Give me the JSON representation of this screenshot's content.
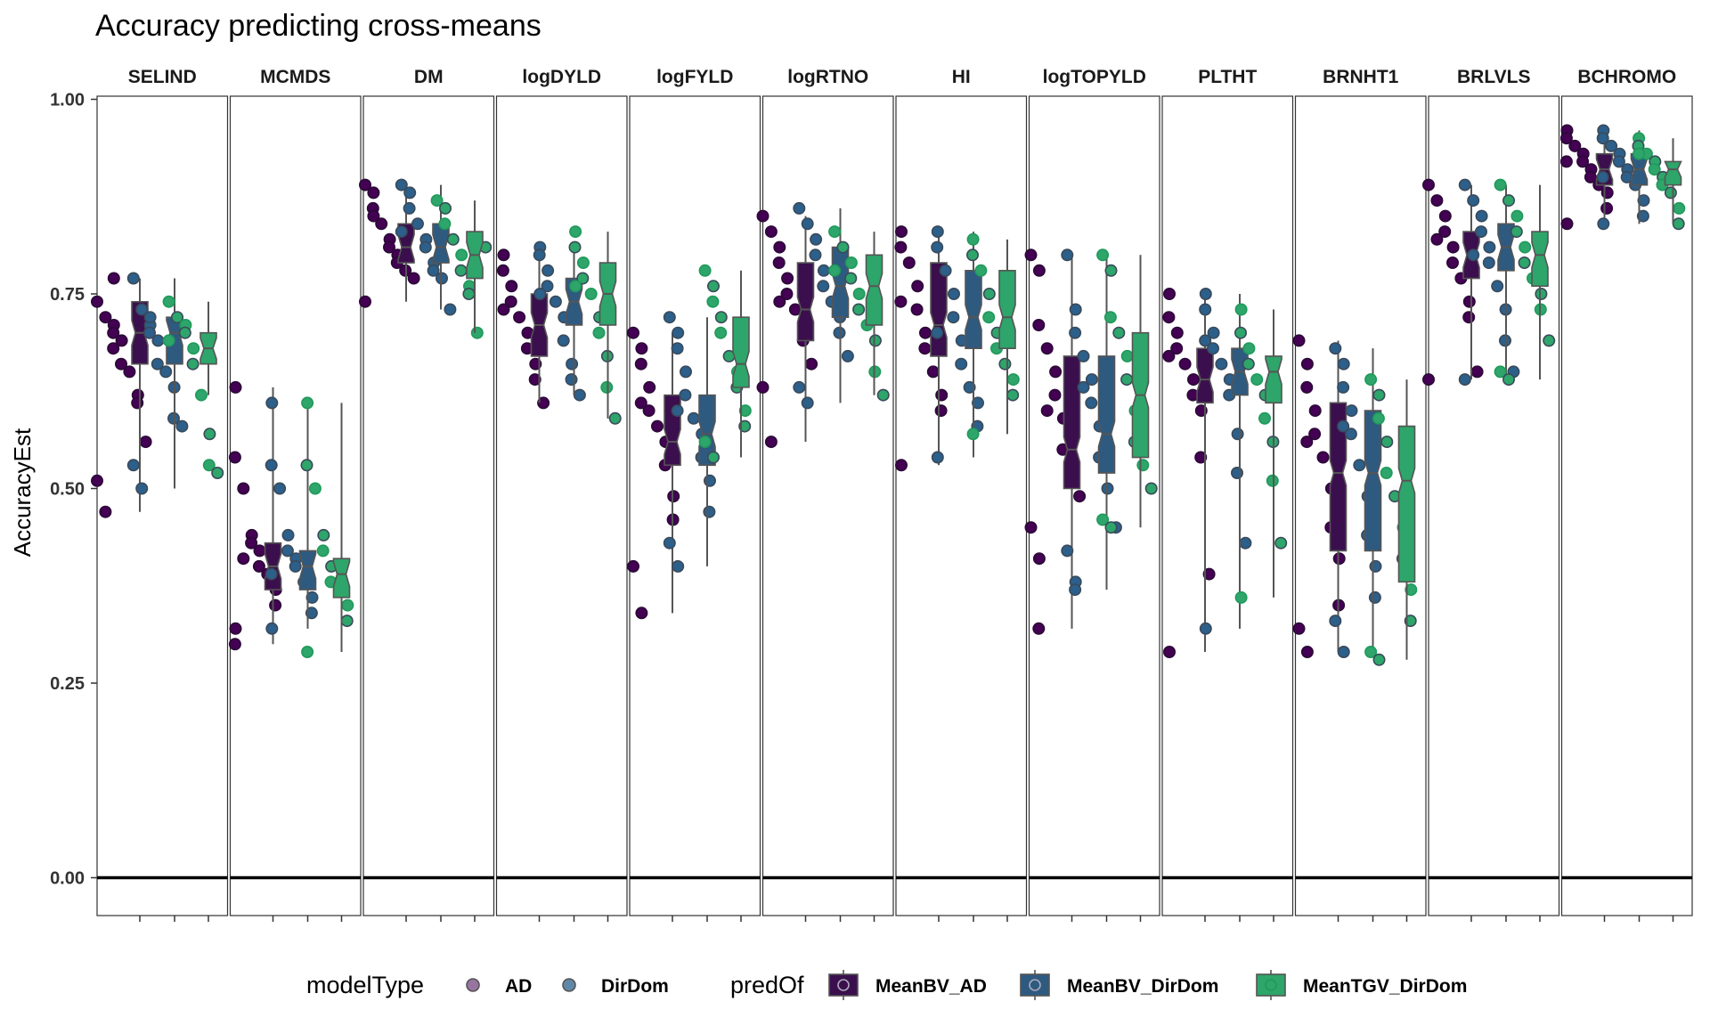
{
  "chart_data": {
    "type": "box",
    "title": "Accuracy predicting cross-means",
    "xlabel": "",
    "ylabel": "AccuracyEst",
    "ylim": [
      -0.05,
      1.0
    ],
    "yticks": [
      "0.00",
      "0.25",
      "0.50",
      "0.75",
      "1.00"
    ],
    "reference_line_y": 0,
    "legend_position": "bottom",
    "colors": {
      "AD": "#440154",
      "DirDom": "#2c5f8a",
      "MeanBV_AD": "#3b0f4d",
      "MeanBV_DirDom": "#2f5a80",
      "MeanTGV_DirDom": "#2ea56a",
      "dot_outline": "#555555",
      "neutral_dot": "#595959"
    },
    "legend": {
      "modelType_title": "modelType",
      "modelType": [
        "AD",
        "DirDom"
      ],
      "predOf_title": "predOf",
      "predOf": [
        "MeanBV_AD",
        "MeanBV_DirDom",
        "MeanTGV_DirDom"
      ]
    },
    "panels": [
      {
        "label": "SELIND",
        "boxes": [
          {
            "series": "MeanBV_AD",
            "min": 0.47,
            "q1": 0.66,
            "median": 0.7,
            "q3": 0.74,
            "max": 0.77,
            "points": [
              0.74,
              0.72,
              0.71,
              0.7,
              0.69,
              0.66,
              0.65,
              0.62,
              0.61,
              0.56,
              0.51,
              0.47,
              0.77,
              0.68
            ]
          },
          {
            "series": "MeanBV_DirDom",
            "min": 0.5,
            "q1": 0.66,
            "median": 0.7,
            "q3": 0.72,
            "max": 0.77,
            "points": [
              0.77,
              0.73,
              0.71,
              0.7,
              0.69,
              0.66,
              0.65,
              0.63,
              0.59,
              0.58,
              0.53,
              0.5,
              0.72
            ]
          },
          {
            "series": "MeanTGV_DirDom",
            "min": 0.62,
            "q1": 0.66,
            "median": 0.68,
            "q3": 0.7,
            "max": 0.74,
            "points": [
              0.74,
              0.72,
              0.71,
              0.7,
              0.68,
              0.66,
              0.62,
              0.57,
              0.53,
              0.52,
              0.69
            ]
          }
        ]
      },
      {
        "label": "MCMDS",
        "boxes": [
          {
            "series": "MeanBV_AD",
            "min": 0.3,
            "q1": 0.37,
            "median": 0.4,
            "q3": 0.43,
            "max": 0.63,
            "points": [
              0.63,
              0.54,
              0.5,
              0.44,
              0.43,
              0.42,
              0.4,
              0.39,
              0.37,
              0.35,
              0.32,
              0.3,
              0.41
            ]
          },
          {
            "series": "MeanBV_DirDom",
            "min": 0.32,
            "q1": 0.37,
            "median": 0.4,
            "q3": 0.42,
            "max": 0.61,
            "points": [
              0.61,
              0.53,
              0.5,
              0.44,
              0.42,
              0.41,
              0.4,
              0.38,
              0.36,
              0.34,
              0.32,
              0.39
            ]
          },
          {
            "series": "MeanTGV_DirDom",
            "min": 0.29,
            "q1": 0.36,
            "median": 0.39,
            "q3": 0.41,
            "max": 0.61,
            "points": [
              0.61,
              0.53,
              0.5,
              0.44,
              0.42,
              0.4,
              0.38,
              0.37,
              0.35,
              0.33,
              0.29
            ]
          }
        ]
      },
      {
        "label": "DM",
        "boxes": [
          {
            "series": "MeanBV_AD",
            "min": 0.74,
            "q1": 0.79,
            "median": 0.81,
            "q3": 0.84,
            "max": 0.89,
            "points": [
              0.89,
              0.88,
              0.86,
              0.84,
              0.82,
              0.81,
              0.8,
              0.79,
              0.78,
              0.77,
              0.74,
              0.85
            ]
          },
          {
            "series": "MeanBV_DirDom",
            "min": 0.73,
            "q1": 0.79,
            "median": 0.81,
            "q3": 0.84,
            "max": 0.89,
            "points": [
              0.89,
              0.88,
              0.86,
              0.84,
              0.82,
              0.81,
              0.79,
              0.78,
              0.77,
              0.73,
              0.83
            ]
          },
          {
            "series": "MeanTGV_DirDom",
            "min": 0.7,
            "q1": 0.77,
            "median": 0.8,
            "q3": 0.83,
            "max": 0.87,
            "points": [
              0.87,
              0.86,
              0.84,
              0.82,
              0.8,
              0.78,
              0.76,
              0.75,
              0.7,
              0.81
            ]
          }
        ]
      },
      {
        "label": "logDYLD",
        "boxes": [
          {
            "series": "MeanBV_AD",
            "min": 0.61,
            "q1": 0.67,
            "median": 0.71,
            "q3": 0.75,
            "max": 0.8,
            "points": [
              0.8,
              0.78,
              0.76,
              0.74,
              0.72,
              0.7,
              0.68,
              0.66,
              0.64,
              0.61,
              0.73
            ]
          },
          {
            "series": "MeanBV_DirDom",
            "min": 0.62,
            "q1": 0.71,
            "median": 0.74,
            "q3": 0.77,
            "max": 0.81,
            "points": [
              0.81,
              0.8,
              0.78,
              0.76,
              0.74,
              0.72,
              0.69,
              0.66,
              0.64,
              0.62,
              0.75
            ]
          },
          {
            "series": "MeanTGV_DirDom",
            "min": 0.59,
            "q1": 0.71,
            "median": 0.75,
            "q3": 0.79,
            "max": 0.83,
            "points": [
              0.83,
              0.81,
              0.79,
              0.77,
              0.75,
              0.72,
              0.7,
              0.67,
              0.63,
              0.59,
              0.76
            ]
          }
        ]
      },
      {
        "label": "logFYLD",
        "boxes": [
          {
            "series": "MeanBV_AD",
            "min": 0.34,
            "q1": 0.53,
            "median": 0.56,
            "q3": 0.62,
            "max": 0.7,
            "points": [
              0.7,
              0.68,
              0.66,
              0.63,
              0.6,
              0.58,
              0.56,
              0.53,
              0.49,
              0.46,
              0.4,
              0.34,
              0.61
            ]
          },
          {
            "series": "MeanBV_DirDom",
            "min": 0.4,
            "q1": 0.53,
            "median": 0.57,
            "q3": 0.62,
            "max": 0.72,
            "points": [
              0.72,
              0.7,
              0.68,
              0.65,
              0.62,
              0.59,
              0.57,
              0.54,
              0.51,
              0.47,
              0.43,
              0.4,
              0.6
            ]
          },
          {
            "series": "MeanTGV_DirDom",
            "min": 0.54,
            "q1": 0.63,
            "median": 0.66,
            "q3": 0.72,
            "max": 0.78,
            "points": [
              0.78,
              0.76,
              0.74,
              0.72,
              0.7,
              0.67,
              0.65,
              0.63,
              0.6,
              0.58,
              0.56,
              0.54
            ]
          }
        ]
      },
      {
        "label": "logRTNO",
        "boxes": [
          {
            "series": "MeanBV_AD",
            "min": 0.56,
            "q1": 0.69,
            "median": 0.73,
            "q3": 0.79,
            "max": 0.85,
            "points": [
              0.85,
              0.83,
              0.81,
              0.79,
              0.77,
              0.75,
              0.73,
              0.71,
              0.69,
              0.66,
              0.63,
              0.56,
              0.74
            ]
          },
          {
            "series": "MeanBV_DirDom",
            "min": 0.61,
            "q1": 0.72,
            "median": 0.76,
            "q3": 0.81,
            "max": 0.86,
            "points": [
              0.86,
              0.84,
              0.82,
              0.8,
              0.78,
              0.76,
              0.74,
              0.72,
              0.7,
              0.67,
              0.63,
              0.61
            ]
          },
          {
            "series": "MeanTGV_DirDom",
            "min": 0.62,
            "q1": 0.71,
            "median": 0.76,
            "q3": 0.8,
            "max": 0.83,
            "points": [
              0.83,
              0.81,
              0.79,
              0.77,
              0.75,
              0.73,
              0.71,
              0.69,
              0.65,
              0.62,
              0.78
            ]
          }
        ]
      },
      {
        "label": "HI",
        "boxes": [
          {
            "series": "MeanBV_AD",
            "min": 0.53,
            "q1": 0.67,
            "median": 0.71,
            "q3": 0.79,
            "max": 0.83,
            "points": [
              0.83,
              0.81,
              0.79,
              0.76,
              0.73,
              0.7,
              0.68,
              0.65,
              0.62,
              0.6,
              0.53,
              0.74
            ]
          },
          {
            "series": "MeanBV_DirDom",
            "min": 0.54,
            "q1": 0.68,
            "median": 0.72,
            "q3": 0.78,
            "max": 0.83,
            "points": [
              0.83,
              0.81,
              0.78,
              0.75,
              0.72,
              0.69,
              0.66,
              0.63,
              0.61,
              0.58,
              0.54,
              0.7
            ]
          },
          {
            "series": "MeanTGV_DirDom",
            "min": 0.57,
            "q1": 0.68,
            "median": 0.72,
            "q3": 0.78,
            "max": 0.82,
            "points": [
              0.82,
              0.8,
              0.78,
              0.75,
              0.72,
              0.7,
              0.68,
              0.66,
              0.64,
              0.62,
              0.57
            ]
          }
        ]
      },
      {
        "label": "logTOPYLD",
        "boxes": [
          {
            "series": "MeanBV_AD",
            "min": 0.32,
            "q1": 0.5,
            "median": 0.55,
            "q3": 0.67,
            "max": 0.8,
            "points": [
              0.8,
              0.78,
              0.71,
              0.68,
              0.65,
              0.62,
              0.59,
              0.55,
              0.52,
              0.49,
              0.45,
              0.41,
              0.32,
              0.6
            ]
          },
          {
            "series": "MeanBV_DirDom",
            "min": 0.37,
            "q1": 0.52,
            "median": 0.57,
            "q3": 0.67,
            "max": 0.8,
            "points": [
              0.8,
              0.73,
              0.7,
              0.67,
              0.64,
              0.61,
              0.58,
              0.54,
              0.5,
              0.45,
              0.42,
              0.38,
              0.37,
              0.63
            ]
          },
          {
            "series": "MeanTGV_DirDom",
            "min": 0.45,
            "q1": 0.54,
            "median": 0.62,
            "q3": 0.7,
            "max": 0.8,
            "points": [
              0.8,
              0.78,
              0.72,
              0.7,
              0.67,
              0.64,
              0.6,
              0.56,
              0.53,
              0.5,
              0.46,
              0.45
            ]
          }
        ]
      },
      {
        "label": "PLTHT",
        "boxes": [
          {
            "series": "MeanBV_AD",
            "min": 0.29,
            "q1": 0.61,
            "median": 0.64,
            "q3": 0.68,
            "max": 0.75,
            "points": [
              0.75,
              0.72,
              0.7,
              0.68,
              0.66,
              0.64,
              0.62,
              0.6,
              0.54,
              0.39,
              0.29,
              0.67
            ]
          },
          {
            "series": "MeanBV_DirDom",
            "min": 0.32,
            "q1": 0.62,
            "median": 0.65,
            "q3": 0.68,
            "max": 0.75,
            "points": [
              0.75,
              0.73,
              0.7,
              0.68,
              0.66,
              0.64,
              0.62,
              0.57,
              0.52,
              0.43,
              0.32,
              0.69
            ]
          },
          {
            "series": "MeanTGV_DirDom",
            "min": 0.36,
            "q1": 0.61,
            "median": 0.65,
            "q3": 0.67,
            "max": 0.73,
            "points": [
              0.73,
              0.7,
              0.68,
              0.66,
              0.64,
              0.62,
              0.59,
              0.56,
              0.51,
              0.43,
              0.36
            ]
          }
        ]
      },
      {
        "label": "BRNHT1",
        "boxes": [
          {
            "series": "MeanBV_AD",
            "min": 0.29,
            "q1": 0.42,
            "median": 0.52,
            "q3": 0.61,
            "max": 0.69,
            "points": [
              0.69,
              0.66,
              0.63,
              0.6,
              0.57,
              0.54,
              0.5,
              0.45,
              0.41,
              0.35,
              0.32,
              0.29,
              0.56
            ]
          },
          {
            "series": "MeanBV_DirDom",
            "min": 0.29,
            "q1": 0.42,
            "median": 0.52,
            "q3": 0.6,
            "max": 0.68,
            "points": [
              0.68,
              0.66,
              0.63,
              0.6,
              0.57,
              0.53,
              0.49,
              0.44,
              0.4,
              0.36,
              0.33,
              0.29,
              0.58
            ]
          },
          {
            "series": "MeanTGV_DirDom",
            "min": 0.28,
            "q1": 0.38,
            "median": 0.51,
            "q3": 0.58,
            "max": 0.64,
            "points": [
              0.64,
              0.62,
              0.59,
              0.56,
              0.52,
              0.49,
              0.45,
              0.41,
              0.37,
              0.33,
              0.29,
              0.28
            ]
          }
        ]
      },
      {
        "label": "BRLVLS",
        "boxes": [
          {
            "series": "MeanBV_AD",
            "min": 0.64,
            "q1": 0.77,
            "median": 0.8,
            "q3": 0.83,
            "max": 0.89,
            "points": [
              0.89,
              0.87,
              0.85,
              0.83,
              0.81,
              0.79,
              0.77,
              0.74,
              0.72,
              0.65,
              0.64,
              0.82
            ]
          },
          {
            "series": "MeanBV_DirDom",
            "min": 0.64,
            "q1": 0.78,
            "median": 0.81,
            "q3": 0.84,
            "max": 0.89,
            "points": [
              0.89,
              0.87,
              0.85,
              0.83,
              0.81,
              0.79,
              0.76,
              0.73,
              0.69,
              0.65,
              0.64,
              0.8
            ]
          },
          {
            "series": "MeanTGV_DirDom",
            "min": 0.64,
            "q1": 0.76,
            "median": 0.8,
            "q3": 0.83,
            "max": 0.89,
            "points": [
              0.89,
              0.87,
              0.85,
              0.83,
              0.81,
              0.79,
              0.77,
              0.75,
              0.73,
              0.69,
              0.65,
              0.64
            ]
          }
        ]
      },
      {
        "label": "BCHROMO",
        "boxes": [
          {
            "series": "MeanBV_AD",
            "min": 0.84,
            "q1": 0.89,
            "median": 0.91,
            "q3": 0.93,
            "max": 0.96,
            "points": [
              0.96,
              0.95,
              0.94,
              0.93,
              0.92,
              0.91,
              0.9,
              0.89,
              0.88,
              0.86,
              0.84,
              0.92
            ]
          },
          {
            "series": "MeanBV_DirDom",
            "min": 0.84,
            "q1": 0.89,
            "median": 0.91,
            "q3": 0.93,
            "max": 0.96,
            "points": [
              0.96,
              0.95,
              0.94,
              0.93,
              0.92,
              0.91,
              0.9,
              0.89,
              0.87,
              0.85,
              0.84,
              0.9
            ]
          },
          {
            "series": "MeanTGV_DirDom",
            "min": 0.84,
            "q1": 0.89,
            "median": 0.91,
            "q3": 0.92,
            "max": 0.95,
            "points": [
              0.95,
              0.94,
              0.93,
              0.92,
              0.91,
              0.9,
              0.89,
              0.88,
              0.86,
              0.84,
              0.93
            ]
          }
        ]
      }
    ]
  }
}
